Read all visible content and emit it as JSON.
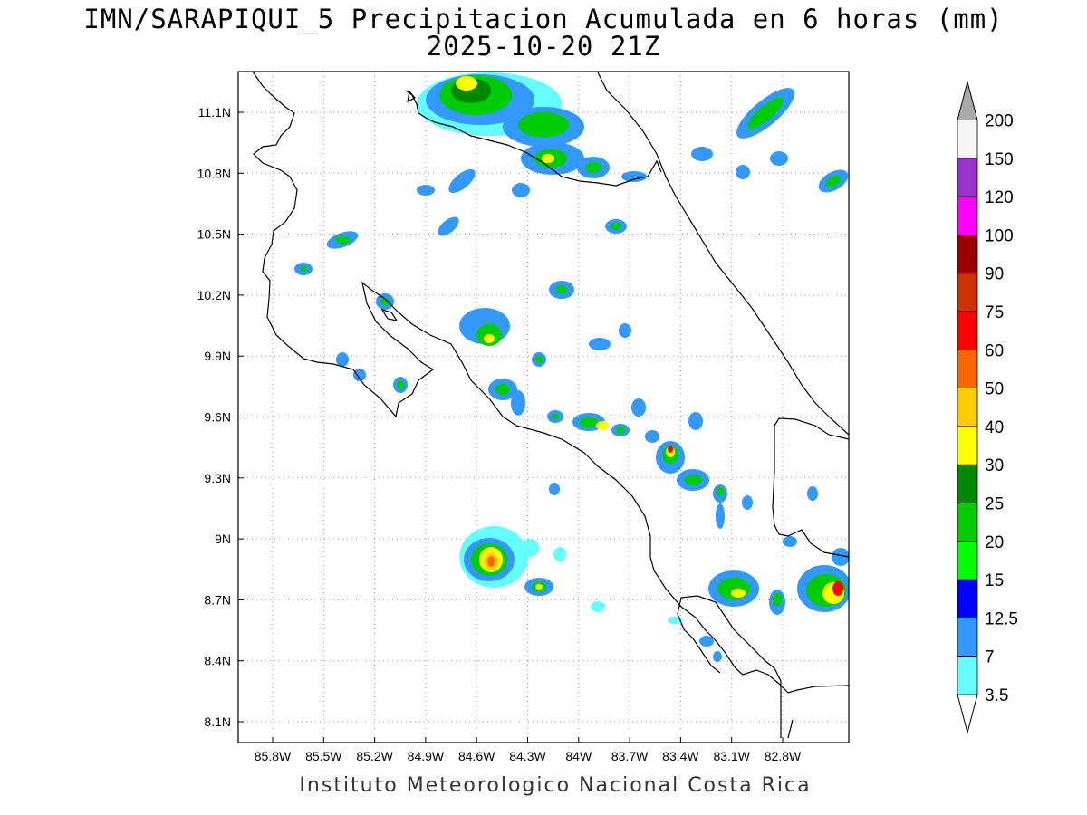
{
  "title": {
    "line1": "IMN/SARAPIQUI_5 Precipitacion Acumulada en 6 horas (mm)",
    "line2": "2025-10-20 21Z"
  },
  "axes": {
    "lon_ticks": [
      "85.8W",
      "85.5W",
      "85.2W",
      "84.9W",
      "84.6W",
      "84.3W",
      "84W",
      "83.7W",
      "83.4W",
      "83.1W",
      "82.8W"
    ],
    "lat_ticks": [
      "11.1N",
      "10.8N",
      "10.5N",
      "10.2N",
      "9.9N",
      "9.6N",
      "9.3N",
      "9N",
      "8.7N",
      "8.4N",
      "8.1N"
    ],
    "lon_range": [
      -85.98,
      -82.65
    ],
    "lat_range": [
      8.0,
      11.3
    ],
    "grid": "dotted"
  },
  "legend": {
    "levels": [
      "3.5",
      "7",
      "12.5",
      "15",
      "20",
      "25",
      "30",
      "40",
      "50",
      "60",
      "75",
      "90",
      "100",
      "120",
      "150",
      "200"
    ],
    "colors": [
      "#66ffff",
      "#3399ff",
      "#0000ff",
      "#00ff00",
      "#00cc00",
      "#008800",
      "#ffff00",
      "#ffcc00",
      "#ff6600",
      "#ff0000",
      "#cc3300",
      "#990000",
      "#ff00ff",
      "#9933cc",
      "#f5f5f5",
      "#aaaaaa"
    ]
  },
  "footer": "Instituto Meteorologico Nacional Costa Rica"
}
